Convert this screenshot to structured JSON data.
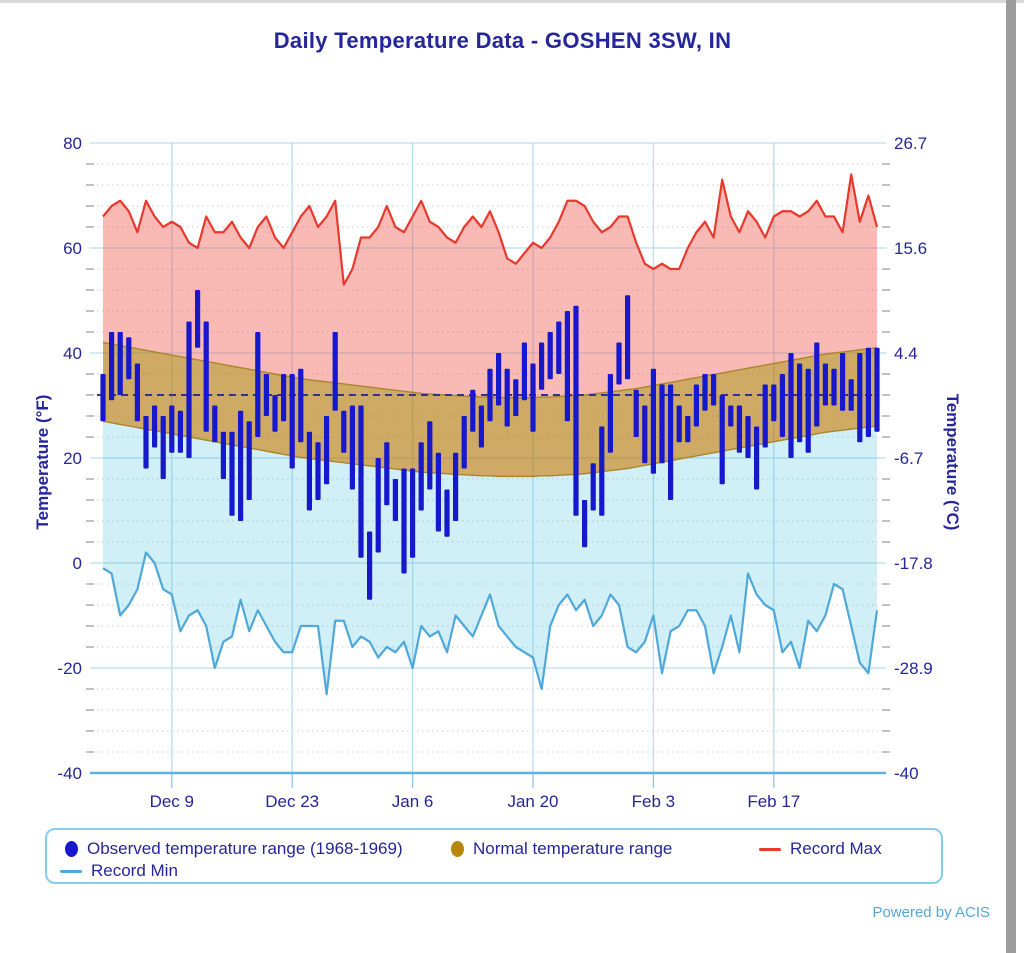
{
  "title": "Daily Temperature Data - GOSHEN 3SW, IN",
  "powered_by": "Powered by ACIS",
  "axes": {
    "left": {
      "title": "Temperature (°F)",
      "ticks": [
        80,
        60,
        40,
        20,
        0,
        -20,
        -40
      ]
    },
    "right": {
      "title": "Temperature (°C)",
      "ticks": [
        "26.7",
        "15.6",
        "4.4",
        "-6.7",
        "-17.8",
        "-28.9",
        "-40"
      ]
    },
    "x": {
      "tick_labels": [
        "Dec 9",
        "Dec 23",
        "Jan 6",
        "Jan 20",
        "Feb 3",
        "Feb 17"
      ],
      "tick_days": [
        8,
        22,
        36,
        50,
        64,
        78
      ]
    }
  },
  "legend": {
    "items": [
      {
        "label": "Observed temperature range (1968-1969)",
        "marker": "dot",
        "color": "#1717cb"
      },
      {
        "label": "Normal temperature range",
        "marker": "dot",
        "color": "#b8860b"
      },
      {
        "label": "Record Max",
        "marker": "line",
        "color": "#e8392c"
      },
      {
        "label": "Record Min",
        "marker": "line",
        "color": "#4fa8da"
      }
    ]
  },
  "colors": {
    "text_navy": "#26269b",
    "record_max_line": "#e8392c",
    "record_max_fill": "#f9c3bf",
    "record_min_line": "#4fa8da",
    "record_min_fill": "#d9f4fa",
    "normal_fill": "#d2ac62",
    "normal_edge": "#a9862c",
    "observed_bar": "#1717cb",
    "freezing_dash": "#32328e",
    "grid_major": "#b9dcee",
    "grid_minor": "#c9c9c9",
    "axis_line": "#5fb0dd",
    "powered_by": "#55a6d9"
  },
  "chart_data": {
    "type": "bar",
    "subtype": "daily temperature range bars with record/normal bands",
    "station": "GOSHEN 3SW, IN",
    "season": "1968-1969",
    "start_day": "Dec 1",
    "end_day": "Mar 1",
    "n_days": 91,
    "ylim_f": [
      -40,
      80
    ],
    "ylim_c": [
      -40,
      26.7
    ],
    "reference_line": {
      "value": 32,
      "meaning": "freezing (°F)",
      "style": "dashed"
    },
    "grid": "major solid light-blue every 20°F, minor dotted every 4°F",
    "legend_position": "bottom",
    "x_gridline_days": [
      8,
      22,
      36,
      50,
      64,
      78
    ],
    "obs_max": [
      36,
      44,
      44,
      43,
      38,
      28,
      30,
      28,
      30,
      29,
      46,
      52,
      46,
      30,
      25,
      25,
      29,
      27,
      44,
      36,
      32,
      36,
      36,
      37,
      25,
      23,
      28,
      44,
      29,
      30,
      30,
      6,
      20,
      23,
      16,
      18,
      18,
      23,
      27,
      21,
      14,
      21,
      28,
      33,
      30,
      37,
      40,
      37,
      35,
      42,
      38,
      42,
      44,
      46,
      48,
      49,
      12,
      19,
      26,
      36,
      42,
      51,
      33,
      30,
      37,
      34,
      34,
      30,
      28,
      34,
      36,
      36,
      32,
      30,
      30,
      28,
      26,
      34,
      34,
      36,
      40,
      38,
      37,
      42,
      38,
      37,
      40,
      35,
      40,
      41,
      41
    ],
    "obs_min": [
      27,
      31,
      32,
      35,
      27,
      18,
      22,
      16,
      21,
      21,
      20,
      41,
      25,
      23,
      16,
      9,
      8,
      12,
      24,
      28,
      25,
      27,
      18,
      23,
      10,
      12,
      15,
      29,
      21,
      14,
      1,
      -7,
      2,
      11,
      8,
      -2,
      1,
      10,
      14,
      6,
      5,
      8,
      18,
      25,
      22,
      27,
      30,
      26,
      28,
      31,
      25,
      33,
      35,
      36,
      27,
      9,
      3,
      10,
      9,
      21,
      34,
      35,
      24,
      19,
      17,
      19,
      12,
      23,
      23,
      26,
      29,
      30,
      15,
      26,
      21,
      20,
      14,
      22,
      27,
      24,
      20,
      23,
      21,
      26,
      30,
      30,
      29,
      29,
      23,
      24,
      25
    ],
    "record_max": [
      66,
      68,
      69,
      67,
      63,
      69,
      66,
      64,
      65,
      64,
      61,
      60,
      66,
      63,
      63,
      65,
      62,
      60,
      64,
      66,
      62,
      60,
      63,
      66,
      68,
      64,
      66,
      69,
      53,
      56,
      62,
      62,
      64,
      68,
      64,
      63,
      66,
      69,
      65,
      64,
      62,
      61,
      64,
      66,
      64,
      67,
      63,
      58,
      57,
      59,
      61,
      60,
      62,
      65,
      69,
      69,
      68,
      65,
      63,
      64,
      66,
      66,
      61,
      57,
      56,
      57,
      56,
      56,
      60,
      63,
      65,
      62,
      73,
      66,
      63,
      67,
      65,
      62,
      66,
      67,
      67,
      66,
      67,
      69,
      66,
      66,
      63,
      74,
      65,
      70,
      64
    ],
    "record_min": [
      -1,
      -2,
      -10,
      -8,
      -5,
      2,
      0,
      -5,
      -6,
      -13,
      -10,
      -9,
      -12,
      -20,
      -15,
      -14,
      -7,
      -13,
      -9,
      -12,
      -15,
      -17,
      -17,
      -12,
      -12,
      -12,
      -25,
      -11,
      -11,
      -16,
      -14,
      -15,
      -18,
      -16,
      -17,
      -15,
      -20,
      -12,
      -14,
      -13,
      -17,
      -10,
      -12,
      -14,
      -10,
      -6,
      -12,
      -14,
      -16,
      -17,
      -18,
      -24,
      -12,
      -8,
      -6,
      -9,
      -7,
      -12,
      -10,
      -6,
      -8,
      -16,
      -17,
      -15,
      -10,
      -21,
      -13,
      -12,
      -9,
      -9,
      -12,
      -21,
      -16,
      -10,
      -17,
      -2,
      -6,
      -8,
      -9,
      -17,
      -15,
      -20,
      -11,
      -13,
      -10,
      -4,
      -5,
      -12,
      -19,
      -21,
      -9
    ],
    "normal_max": [
      42,
      41.7,
      41.4,
      41.1,
      40.8,
      40.5,
      40.2,
      39.9,
      39.6,
      39.3,
      39,
      38.7,
      38.4,
      38.1,
      37.8,
      37.5,
      37.2,
      36.9,
      36.6,
      36.3,
      36,
      35.7,
      35.4,
      35.1,
      34.9,
      34.7,
      34.5,
      34.3,
      34.1,
      33.9,
      33.7,
      33.5,
      33.3,
      33.1,
      32.9,
      32.7,
      32.5,
      32.3,
      32.2,
      32.1,
      32,
      31.9,
      31.8,
      31.7,
      31.6,
      31.6,
      31.5,
      31.5,
      31.5,
      31.5,
      31.5,
      31.6,
      31.6,
      31.7,
      31.8,
      31.9,
      32,
      32.2,
      32.4,
      32.6,
      32.8,
      33,
      33.2,
      33.5,
      33.8,
      34.1,
      34.4,
      34.7,
      35,
      35.3,
      35.6,
      35.9,
      36.2,
      36.5,
      36.8,
      37.1,
      37.4,
      37.7,
      38,
      38.3,
      38.6,
      38.9,
      39.2,
      39.5,
      39.8,
      40,
      40.2,
      40.4,
      40.6,
      40.8,
      41
    ],
    "normal_min": [
      27,
      26.7,
      26.4,
      26.1,
      25.8,
      25.5,
      25.2,
      24.9,
      24.6,
      24.3,
      24,
      23.7,
      23.4,
      23.1,
      22.8,
      22.5,
      22.2,
      21.9,
      21.6,
      21.3,
      21,
      20.7,
      20.4,
      20.1,
      19.9,
      19.7,
      19.5,
      19.3,
      19.1,
      18.9,
      18.7,
      18.5,
      18.3,
      18.1,
      17.9,
      17.7,
      17.5,
      17.3,
      17.2,
      17.1,
      17,
      16.9,
      16.8,
      16.7,
      16.6,
      16.6,
      16.5,
      16.5,
      16.5,
      16.5,
      16.5,
      16.6,
      16.6,
      16.7,
      16.8,
      16.9,
      17,
      17.2,
      17.4,
      17.6,
      17.8,
      18,
      18.3,
      18.6,
      18.9,
      19.2,
      19.5,
      19.8,
      20.1,
      20.4,
      20.7,
      21,
      21.3,
      21.6,
      21.9,
      22.2,
      22.5,
      22.8,
      23.1,
      23.4,
      23.7,
      24,
      24.3,
      24.6,
      24.9,
      25.1,
      25.3,
      25.5,
      25.7,
      25.9,
      26.1
    ]
  }
}
